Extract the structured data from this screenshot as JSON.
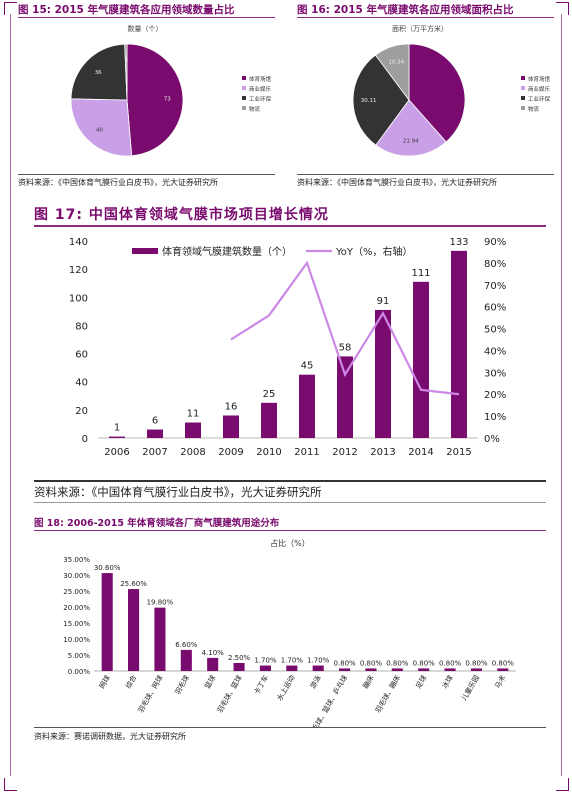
{
  "fig15": {
    "title": "图 15: 2015 年气膜建筑各应用领域数量占比",
    "chart_title": "数量（个）",
    "source": "资料来源：《中国体育气膜行业白皮书》，光大证券研究所",
    "legend": [
      "体育场馆",
      "商业娱乐",
      "工业环保",
      "物流"
    ]
  },
  "fig16": {
    "title": "图 16: 2015 年气膜建筑各应用领域面积占比",
    "chart_title": "面积（万平方米）",
    "source": "资料来源：《中国体育气膜行业白皮书》，光大证券研究所",
    "legend": [
      "体育场馆",
      "商业娱乐",
      "工业环保",
      "物流"
    ]
  },
  "fig17": {
    "title": "图 17: 中国体育领域气膜市场项目增长情况",
    "source": "资料来源：《中国体育气膜行业白皮书》，光大证券研究所",
    "legend_bar": "体育领域气膜建筑数量（个）",
    "legend_line": "YoY（%，右轴）"
  },
  "fig18": {
    "title": "图 18: 2006-2015 年体育领域各厂商气膜建筑用途分布",
    "chart_title": "占比（%）",
    "source": "资料来源：赛诺调研数据，光大证券研究所"
  },
  "colors": {
    "purple": "#7a0b6e",
    "light_purple": "#c9a0e8",
    "dark": "#333333",
    "grey": "#9e9e9e",
    "yoy_line": "#cc88e6"
  },
  "chart_data": [
    {
      "type": "pie",
      "labels": [
        "体育场馆",
        "商业娱乐",
        "工业环保",
        "物流"
      ],
      "values": [
        73,
        40,
        36,
        1
      ],
      "value_labels": [
        "73",
        "40",
        "36",
        "1"
      ],
      "colors": [
        "#7a0b6e",
        "#c9a0e8",
        "#333333",
        "#9e9e9e"
      ]
    },
    {
      "type": "pie",
      "labels": [
        "体育场馆",
        "商业娱乐",
        "工业环保",
        "物流"
      ],
      "values": [
        39.0,
        21.94,
        30.11,
        10.34
      ],
      "value_labels": [
        "",
        "21.94",
        "30.11",
        "10.34"
      ],
      "colors": [
        "#7a0b6e",
        "#c9a0e8",
        "#333333",
        "#9e9e9e"
      ]
    },
    {
      "type": "bar",
      "categories": [
        "2006",
        "2007",
        "2008",
        "2009",
        "2010",
        "2011",
        "2012",
        "2013",
        "2014",
        "2015"
      ],
      "series": [
        {
          "name": "体育领域气膜建筑数量（个）",
          "values": [
            1,
            6,
            11,
            16,
            25,
            45,
            58,
            91,
            111,
            133
          ]
        },
        {
          "name": "YoY（%，右轴）",
          "type": "line",
          "axis": "right",
          "values": [
            null,
            null,
            null,
            45,
            56,
            80,
            29,
            57,
            22,
            20
          ]
        }
      ],
      "ylim": [
        0,
        140
      ],
      "y_ticks": [
        "0",
        "20",
        "40",
        "60",
        "80",
        "100",
        "120",
        "140"
      ],
      "y2lim": [
        0,
        90
      ],
      "y2_ticks": [
        "0%",
        "10%",
        "20%",
        "30%",
        "40%",
        "50%",
        "60%",
        "70%",
        "80%",
        "90%"
      ],
      "legend": "top-left"
    },
    {
      "type": "bar",
      "categories": [
        "网球",
        "综合",
        "羽毛球、网球",
        "羽毛球",
        "篮球",
        "羽毛球、篮球",
        "卡丁车",
        "水上运动",
        "游泳",
        "羽毛球、篮球、乒乓球",
        "蹦床",
        "羽毛球、蹦床",
        "足球",
        "冰球",
        "儿童乐园",
        "马术"
      ],
      "values": [
        30.6,
        25.6,
        19.8,
        6.6,
        4.1,
        2.5,
        1.7,
        1.7,
        1.7,
        0.8,
        0.8,
        0.8,
        0.8,
        0.8,
        0.8,
        0.8
      ],
      "value_labels": [
        "30.60%",
        "25.60%",
        "19.80%",
        "6.60%",
        "4.10%",
        "2.50%",
        "1.70%",
        "1.70%",
        "1.70%",
        "0.80%",
        "0.80%",
        "0.80%",
        "0.80%",
        "0.80%",
        "0.80%",
        "0.80%"
      ],
      "ylim": [
        0,
        35
      ],
      "y_ticks": [
        "0.00%",
        "5.00%",
        "10.00%",
        "15.00%",
        "20.00%",
        "25.00%",
        "30.00%",
        "35.00%"
      ]
    }
  ]
}
